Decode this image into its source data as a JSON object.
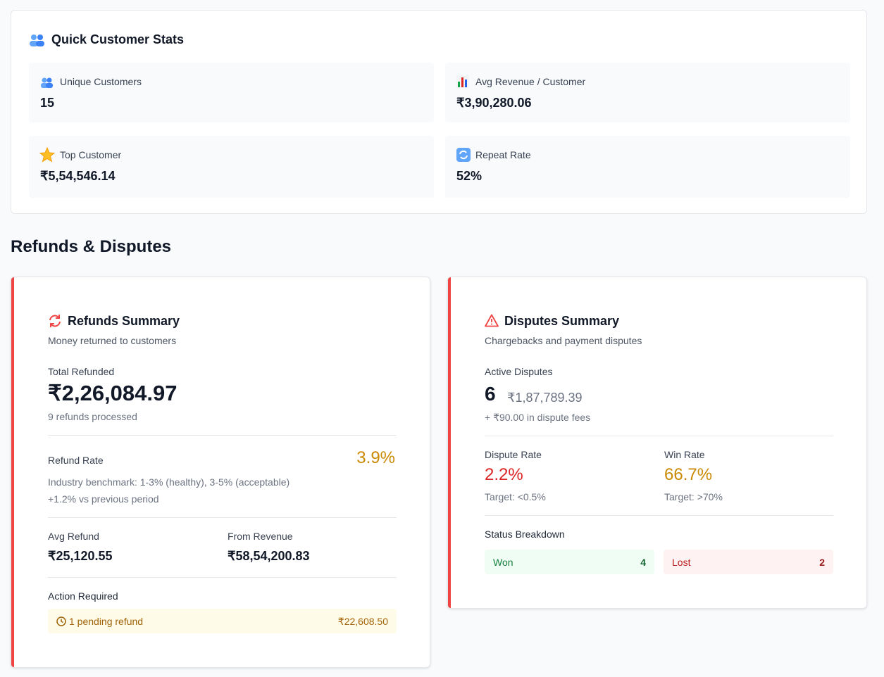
{
  "customer_stats": {
    "title": "Quick Customer Stats",
    "items": [
      {
        "label": "Unique Customers",
        "value": "15"
      },
      {
        "label": "Avg Revenue / Customer",
        "value": "₹3,90,280.06"
      },
      {
        "label": "Top Customer",
        "value": "₹5,54,546.14"
      },
      {
        "label": "Repeat Rate",
        "value": "52%"
      }
    ]
  },
  "section_title": "Refunds & Disputes",
  "refunds": {
    "title": "Refunds Summary",
    "subtitle": "Money returned to customers",
    "total_label": "Total Refunded",
    "total_value": "₹2,26,084.97",
    "count_note": "9 refunds processed",
    "rate_label": "Refund Rate",
    "rate_value": "3.9%",
    "benchmark": "Industry benchmark: 1-3% (healthy), 3-5% (acceptable)",
    "change": "+1.2% vs previous period",
    "avg_label": "Avg Refund",
    "avg_value": "₹25,120.55",
    "revenue_label": "From Revenue",
    "revenue_value": "₹58,54,200.83",
    "action_label": "Action Required",
    "pending_text": "1 pending refund",
    "pending_amount": "₹22,608.50"
  },
  "disputes": {
    "title": "Disputes Summary",
    "subtitle": "Chargebacks and payment disputes",
    "active_label": "Active Disputes",
    "active_count": "6",
    "active_amount": "₹1,87,789.39",
    "fees_note": "+ ₹90.00 in dispute fees",
    "rate_label": "Dispute Rate",
    "rate_value": "2.2%",
    "rate_target": "Target: <0.5%",
    "win_label": "Win Rate",
    "win_value": "66.7%",
    "win_target": "Target: >70%",
    "breakdown_label": "Status Breakdown",
    "statuses": [
      {
        "label": "Won",
        "count": "4"
      },
      {
        "label": "Lost",
        "count": "2"
      }
    ]
  }
}
